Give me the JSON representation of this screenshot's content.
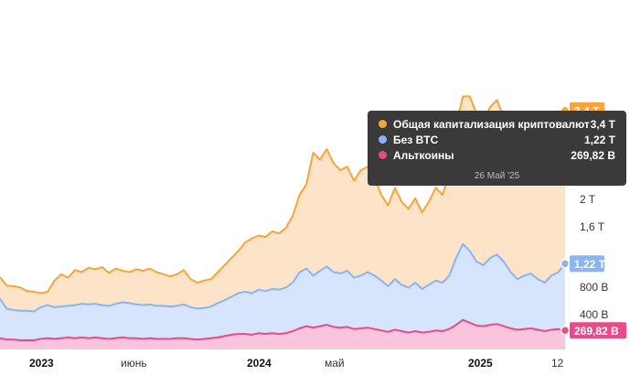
{
  "chart_data": {
    "type": "area",
    "x_labels": [
      "2023",
      "июнь",
      "2024",
      "май",
      "2025",
      "12"
    ],
    "x_labels_bold": [
      "2023",
      "2024",
      "2025"
    ],
    "y_tick_labels": [
      "2 T",
      "1,6 T",
      "800 B",
      "400 B"
    ],
    "ylim": [
      0,
      4.1
    ],
    "grid": false,
    "series": [
      {
        "name": "Общая капитализация криптовалют",
        "color": "#f6a43b",
        "fill": "#fde3c7",
        "last_label": "3,4 T",
        "values": [
          1.03,
          0.91,
          0.9,
          0.88,
          0.83,
          0.82,
          0.8,
          0.82,
          0.98,
          1.07,
          1.02,
          1.13,
          1.1,
          1.16,
          1.14,
          1.17,
          1.09,
          1.15,
          1.12,
          1.1,
          1.14,
          1.12,
          1.15,
          1.1,
          1.07,
          1.04,
          1.07,
          1.13,
          1.0,
          0.95,
          0.98,
          1.0,
          1.1,
          1.2,
          1.3,
          1.4,
          1.52,
          1.58,
          1.62,
          1.6,
          1.68,
          1.65,
          1.73,
          1.9,
          2.2,
          2.35,
          2.8,
          2.7,
          2.85,
          2.65,
          2.55,
          2.6,
          2.4,
          2.55,
          2.6,
          2.45,
          2.2,
          2.05,
          2.3,
          2.1,
          2.0,
          2.15,
          1.95,
          2.1,
          2.3,
          2.2,
          2.5,
          3.2,
          3.6,
          3.6,
          3.35,
          3.25,
          3.45,
          3.55,
          3.3,
          2.95,
          2.75,
          2.85,
          2.95,
          3.1,
          3.0,
          3.2,
          3.3,
          3.4
        ]
      },
      {
        "name": "Без BTC",
        "color": "#8ab4f2",
        "fill": "#d6e4fc",
        "last_label": "1,22 T",
        "values": [
          0.72,
          0.58,
          0.56,
          0.55,
          0.55,
          0.54,
          0.6,
          0.63,
          0.6,
          0.61,
          0.62,
          0.63,
          0.65,
          0.64,
          0.65,
          0.63,
          0.62,
          0.65,
          0.67,
          0.66,
          0.64,
          0.63,
          0.64,
          0.62,
          0.62,
          0.61,
          0.62,
          0.64,
          0.6,
          0.58,
          0.59,
          0.61,
          0.66,
          0.7,
          0.75,
          0.8,
          0.82,
          0.8,
          0.85,
          0.83,
          0.86,
          0.85,
          0.88,
          0.95,
          1.1,
          1.15,
          1.05,
          1.12,
          1.18,
          1.1,
          1.08,
          1.12,
          1.02,
          1.05,
          1.1,
          1.05,
          0.98,
          0.9,
          1.0,
          0.92,
          0.88,
          0.95,
          0.86,
          0.92,
          0.98,
          0.95,
          1.05,
          1.3,
          1.5,
          1.4,
          1.25,
          1.2,
          1.3,
          1.35,
          1.25,
          1.1,
          1.0,
          1.05,
          1.08,
          1.0,
          0.95,
          1.05,
          1.1,
          1.22
        ]
      },
      {
        "name": "Альткоины",
        "color": "#e94b8a",
        "fill": "#f9c4dc",
        "last_label": "269,82 B",
        "values": [
          0.16,
          0.14,
          0.14,
          0.13,
          0.13,
          0.13,
          0.15,
          0.16,
          0.15,
          0.16,
          0.17,
          0.16,
          0.17,
          0.16,
          0.17,
          0.16,
          0.15,
          0.16,
          0.17,
          0.16,
          0.16,
          0.15,
          0.16,
          0.15,
          0.15,
          0.15,
          0.16,
          0.16,
          0.15,
          0.14,
          0.15,
          0.16,
          0.17,
          0.19,
          0.21,
          0.22,
          0.22,
          0.21,
          0.23,
          0.22,
          0.23,
          0.22,
          0.23,
          0.26,
          0.3,
          0.33,
          0.31,
          0.33,
          0.35,
          0.32,
          0.31,
          0.32,
          0.29,
          0.3,
          0.31,
          0.29,
          0.27,
          0.25,
          0.28,
          0.26,
          0.24,
          0.26,
          0.24,
          0.25,
          0.27,
          0.26,
          0.29,
          0.35,
          0.42,
          0.38,
          0.34,
          0.33,
          0.35,
          0.36,
          0.33,
          0.3,
          0.28,
          0.29,
          0.3,
          0.28,
          0.26,
          0.28,
          0.29,
          0.27
        ]
      }
    ],
    "tooltip": {
      "date": "26 Май '25",
      "rows": [
        {
          "name": "Общая капитализация криптовалют",
          "value": "3,4 T",
          "color": "#f6a43b"
        },
        {
          "name": "Без BTC",
          "value": "1,22 T",
          "color": "#8ab4f2"
        },
        {
          "name": "Альткоины",
          "value": "269,82 B",
          "color": "#e94b8a"
        }
      ]
    }
  }
}
